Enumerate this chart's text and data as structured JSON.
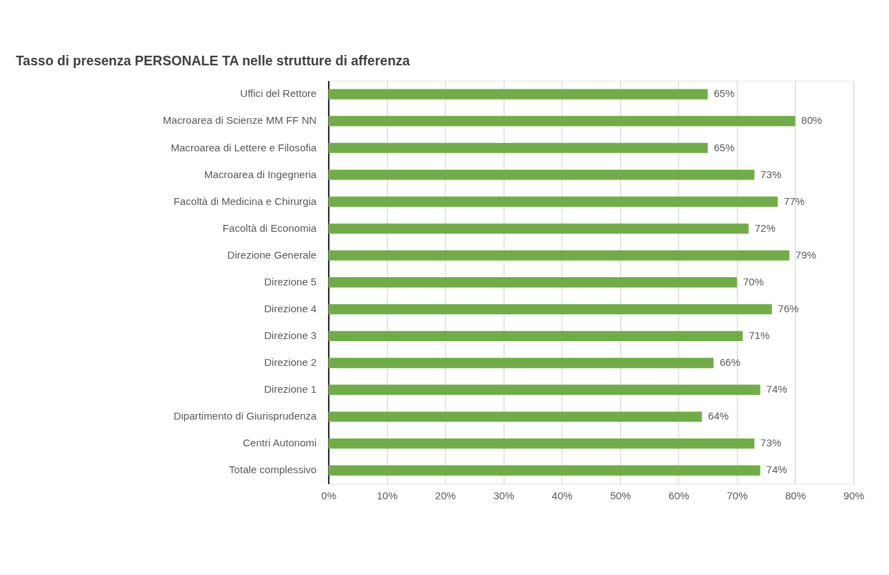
{
  "chart_data": {
    "type": "bar",
    "orientation": "horizontal",
    "title": "Tasso di presenza PERSONALE TA nelle strutture di afferenza",
    "categories": [
      "Uffici del Rettore",
      "Macroarea di Scienze MM FF NN",
      "Macroarea di Lettere e Filosofia",
      "Macroarea di Ingegneria",
      "Facoltà di Medicina e Chirurgia",
      "Facoltà di Economia",
      "Direzione Generale",
      "Direzione 5",
      "Direzione 4",
      "Direzione 3",
      "Direzione 2",
      "Direzione 1",
      "Dipartimento di Giurisprudenza",
      "Centri Autonomi",
      "Totale complessivo"
    ],
    "values": [
      65,
      80,
      65,
      73,
      77,
      72,
      79,
      70,
      76,
      71,
      66,
      74,
      64,
      73,
      74
    ],
    "value_labels": [
      "65%",
      "80%",
      "65%",
      "73%",
      "77%",
      "72%",
      "79%",
      "70%",
      "76%",
      "71%",
      "66%",
      "74%",
      "64%",
      "73%",
      "74%"
    ],
    "color": "#70ad47",
    "xlim": [
      0,
      90
    ],
    "xticks": [
      {
        "value": 0,
        "label": "0%"
      },
      {
        "value": 10,
        "label": "10%"
      },
      {
        "value": 20,
        "label": "20%"
      },
      {
        "value": 30,
        "label": "30%"
      },
      {
        "value": 40,
        "label": "40%"
      },
      {
        "value": 50,
        "label": "50%"
      },
      {
        "value": 60,
        "label": "60%"
      },
      {
        "value": 70,
        "label": "70%"
      },
      {
        "value": 80,
        "label": "80%"
      },
      {
        "value": 90,
        "label": "90%"
      }
    ],
    "grid": "x"
  }
}
